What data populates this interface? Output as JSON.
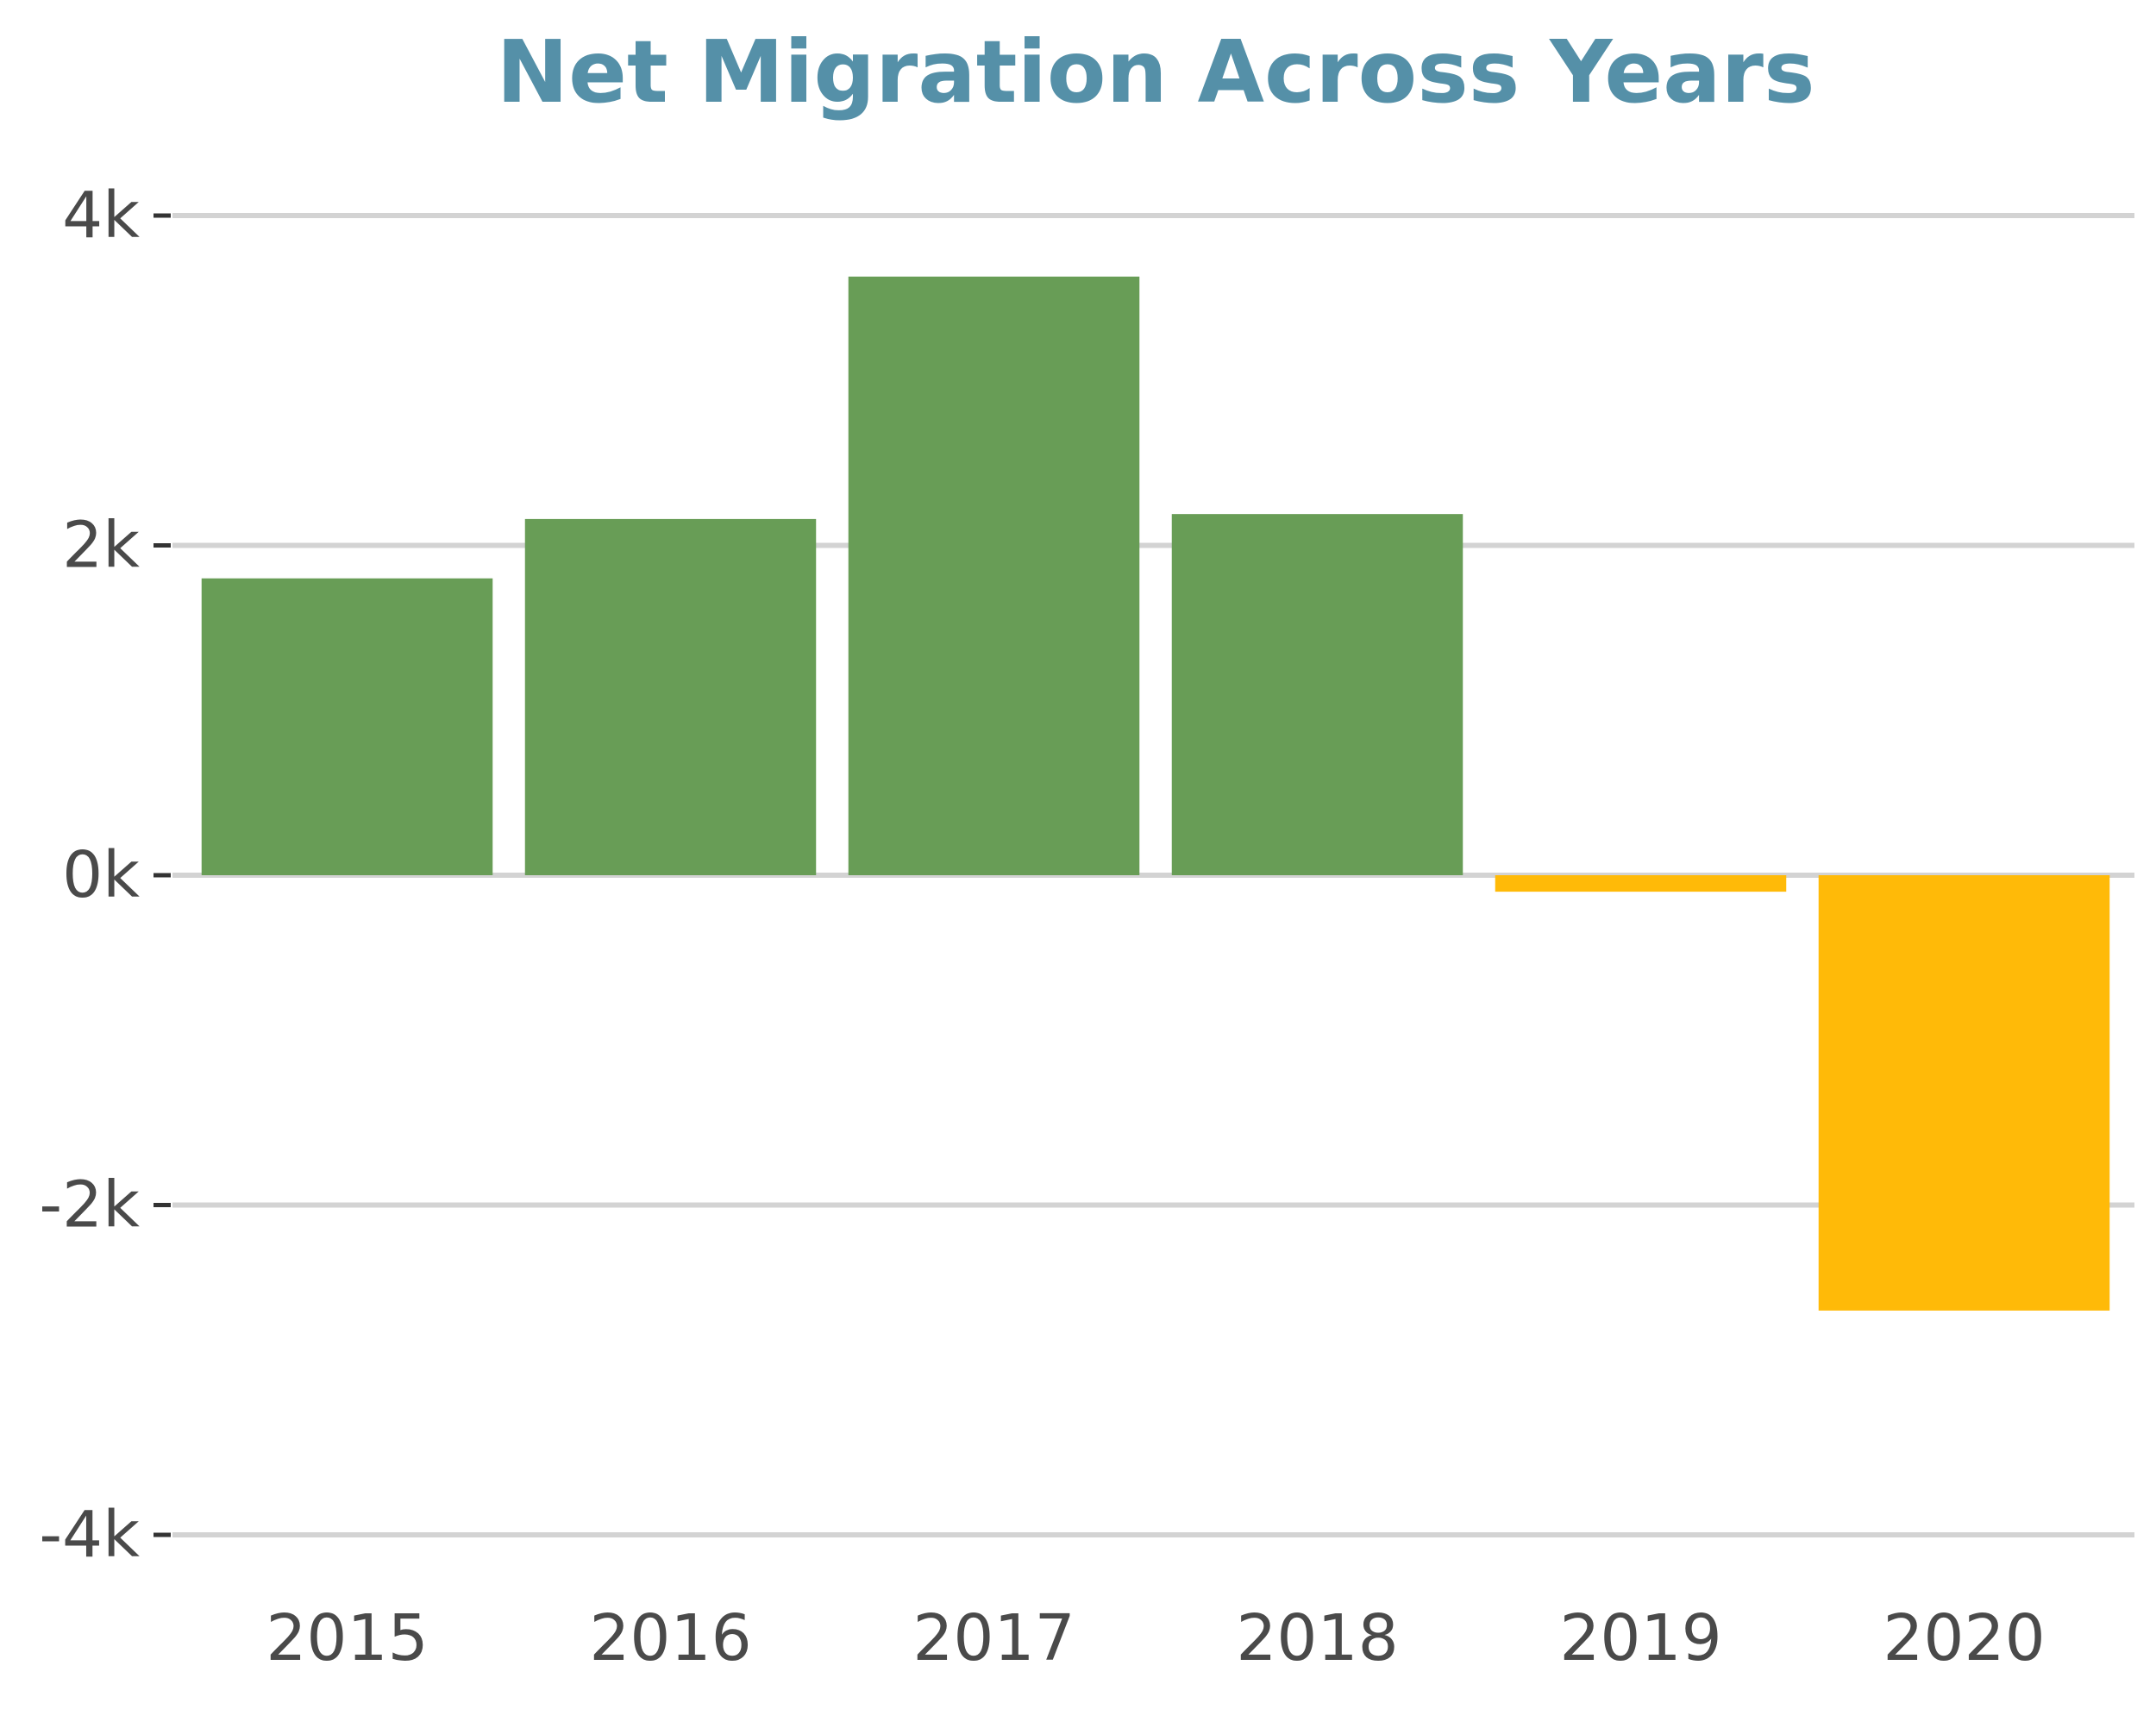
{
  "chart_data": {
    "type": "bar",
    "title": "Net Migration Across Years",
    "xlabel": "",
    "ylabel": "",
    "categories": [
      "2015",
      "2016",
      "2017",
      "2018",
      "2019",
      "2020"
    ],
    "values": [
      1800,
      2160,
      3630,
      2190,
      -100,
      -2640
    ],
    "ylim": [
      -4000,
      4000
    ],
    "yticks": [
      -4000,
      -2000,
      0,
      2000,
      4000
    ],
    "ytick_labels": [
      "-4k",
      "-2k",
      "0k",
      "2k",
      "4k"
    ],
    "grid": true,
    "legend": "none",
    "colors": {
      "positive": "#689d56",
      "negative": "#ffba08",
      "grid": "#d3d3d3",
      "title": "#5590a8",
      "text": "#4a4a4a"
    }
  }
}
